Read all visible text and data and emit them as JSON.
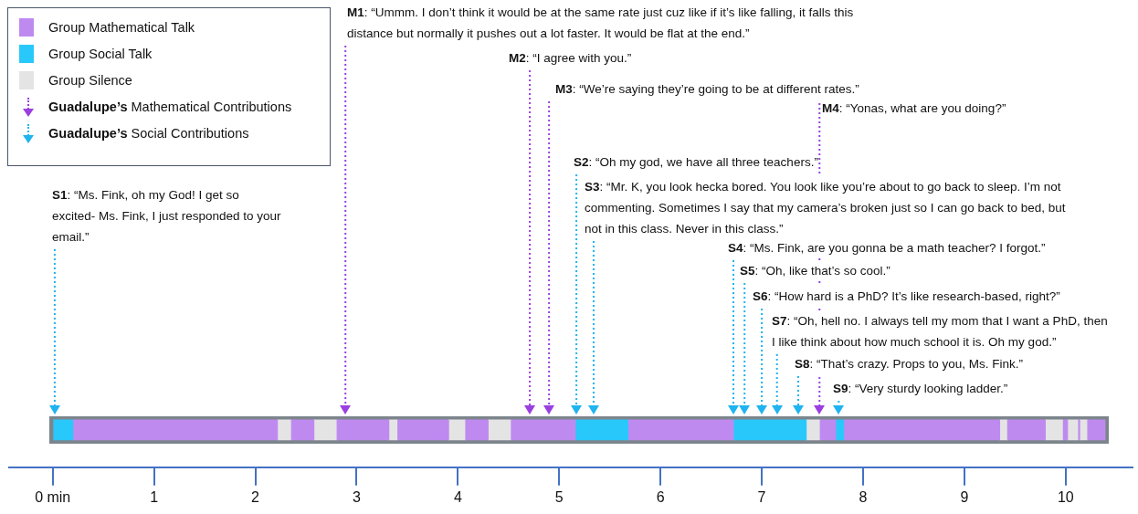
{
  "chart_data": {
    "type": "bar",
    "orientation": "horizontal",
    "stacked": true,
    "legend": "top left",
    "grid": false,
    "categories": [
      null
    ],
    "xlim": [
      -0.43,
      10.66
    ],
    "xticks": [
      {
        "value": 0,
        "label": "0 min"
      },
      {
        "value": 1,
        "label": "1"
      },
      {
        "value": 2,
        "label": "2"
      },
      {
        "value": 3,
        "label": "3"
      },
      {
        "value": 4,
        "label": "4"
      },
      {
        "value": 5,
        "label": "5"
      },
      {
        "value": 6,
        "label": "6"
      },
      {
        "value": 7,
        "label": "7"
      },
      {
        "value": 8,
        "label": "8"
      },
      {
        "value": 9,
        "label": "9"
      },
      {
        "value": 10,
        "label": "10"
      }
    ],
    "tick_labels": "x",
    "series": [
      {
        "name": "Group Social Talk",
        "color": "#29c8fb",
        "values": [
          0.2
        ]
      },
      {
        "name": "Group Mathematical Talk",
        "color": "#bf8af0",
        "values": [
          2.02
        ]
      },
      {
        "name": "Group Silence",
        "color": "#e4e4e4",
        "values": [
          0.13
        ]
      },
      {
        "color": "#bf8af0",
        "values": [
          0.23
        ]
      },
      {
        "color": "#e4e4e4",
        "values": [
          0.22
        ]
      },
      {
        "color": "#bf8af0",
        "values": [
          0.52
        ]
      },
      {
        "color": "#e4e4e4",
        "values": [
          0.08
        ]
      },
      {
        "color": "#bf8af0",
        "values": [
          0.51
        ]
      },
      {
        "color": "#e4e4e4",
        "values": [
          0.16
        ]
      },
      {
        "color": "#bf8af0",
        "values": [
          0.23
        ]
      },
      {
        "color": "#e4e4e4",
        "values": [
          0.22
        ]
      },
      {
        "color": "#bf8af0",
        "values": [
          0.64
        ]
      },
      {
        "color": "#29c8fb",
        "values": [
          0.52
        ]
      },
      {
        "color": "#bf8af0",
        "values": [
          1.04
        ]
      },
      {
        "color": "#29c8fb",
        "values": [
          0.72
        ]
      },
      {
        "color": "#e4e4e4",
        "values": [
          0.13
        ]
      },
      {
        "color": "#bf8af0",
        "values": [
          0.16
        ]
      },
      {
        "color": "#29c8fb",
        "values": [
          0.08
        ]
      },
      {
        "color": "#bf8af0",
        "values": [
          1.54
        ]
      },
      {
        "color": "#e4e4e4",
        "values": [
          0.07
        ]
      },
      {
        "color": "#bf8af0",
        "values": [
          0.38
        ]
      },
      {
        "color": "#e4e4e4",
        "values": [
          0.17
        ]
      },
      {
        "color": "#bf8af0",
        "values": [
          0.05
        ]
      },
      {
        "color": "#e4e4e4",
        "values": [
          0.1
        ]
      },
      {
        "color": "#bf8af0",
        "values": [
          0.02
        ]
      },
      {
        "color": "#e4e4e4",
        "values": [
          0.07
        ]
      },
      {
        "color": "#bf8af0",
        "values": [
          0.18
        ]
      }
    ],
    "ref_lines": [
      {
        "axis": "x",
        "value": 2.89,
        "color": "#9b40e0",
        "line_style": "dotted",
        "label": "M1: “Ummm. I don’t think it would be at the same rate just cuz like if it’s like falling, it falls this distance but normally it pushes out a lot faster. It would be flat at the end.”"
      },
      {
        "axis": "x",
        "value": 0.02,
        "color": "#1fb4f0",
        "line_style": "dotted",
        "label": "S1: “Ms. Fink, oh my God! I get so excited- Ms. Fink, I just responded to your email.”"
      },
      {
        "axis": "x",
        "value": 4.71,
        "color": "#9b40e0",
        "line_style": "dotted",
        "label": "M2: “I agree with you.”"
      },
      {
        "axis": "x",
        "value": 4.9,
        "color": "#9b40e0",
        "line_style": "dotted",
        "label": "M3: “We’re saying they’re going to be at different rates.”"
      },
      {
        "axis": "x",
        "value": 7.57,
        "color": "#9b40e0",
        "line_style": "dotted",
        "label": "M4: “Yonas, what are you doing?”"
      },
      {
        "axis": "x",
        "value": 5.17,
        "color": "#1fb4f0",
        "line_style": "dotted",
        "label": "S2: “Oh my god, we have all three teachers.”"
      },
      {
        "axis": "x",
        "value": 5.34,
        "color": "#1fb4f0",
        "line_style": "dotted",
        "label": "S3: “Mr. K, you look hecka bored. You look like you’re about to go back to sleep. I’m not commenting. Sometimes I say that my camera’s broken just so I can go back to bed, but not in this class. Never in this class.”"
      },
      {
        "axis": "x",
        "value": 6.72,
        "color": "#1fb4f0",
        "line_style": "dotted",
        "label": "S4: “Ms. Fink, are you gonna be a math teacher? I forgot.”"
      },
      {
        "axis": "x",
        "value": 6.83,
        "color": "#1fb4f0",
        "line_style": "dotted",
        "label": "S5: “Oh, like that’s so cool.”"
      },
      {
        "axis": "x",
        "value": 7.0,
        "color": "#1fb4f0",
        "line_style": "dotted",
        "label": "S6: “How hard is a PhD? It’s like research-based, right?”"
      },
      {
        "axis": "x",
        "value": 7.15,
        "color": "#1fb4f0",
        "line_style": "dotted",
        "label": "S7: “Oh, hell no. I always tell my mom that I want a PhD, then I like think about how much school it is. Oh my god.”"
      },
      {
        "axis": "x",
        "value": 7.36,
        "color": "#1fb4f0",
        "line_style": "dotted",
        "label": "S8: “That’s crazy. Props to you, Ms. Fink.”"
      },
      {
        "axis": "x",
        "value": 7.76,
        "color": "#1fb4f0",
        "line_style": "dotted",
        "label": "S9: “Very sturdy looking ladder.”"
      }
    ],
    "annotations": [
      "Guadalupe’s Mathematical Contributions",
      "Guadalupe’s Social Contributions"
    ]
  }
}
